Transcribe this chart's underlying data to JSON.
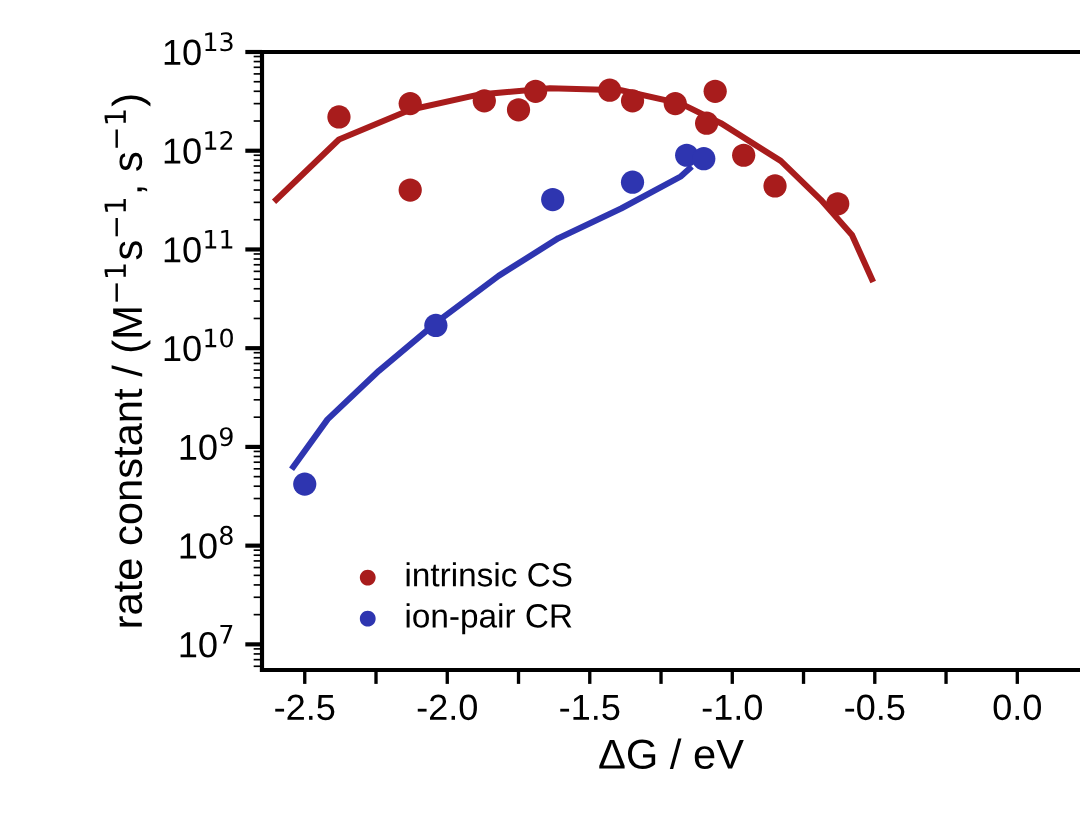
{
  "chart_data": {
    "type": "scatter",
    "xlabel": "ΔG / eV",
    "ylabel": "rate constant / (M$^{−1}$s$^{−1}$, s$^{−1}$)",
    "log": "y",
    "xlim": [
      -2.65,
      0.22
    ],
    "ylim": [
      5500000.0,
      10000000000000.0
    ],
    "xticks": [
      {
        "value": -2.5,
        "label": "-2.5"
      },
      {
        "value": -2.25,
        "label": null
      },
      {
        "value": -2.0,
        "label": "-2.0"
      },
      {
        "value": -1.75,
        "label": null
      },
      {
        "value": -1.5,
        "label": "-1.5"
      },
      {
        "value": -1.25,
        "label": null
      },
      {
        "value": -1.0,
        "label": "-1.0"
      },
      {
        "value": -0.75,
        "label": null
      },
      {
        "value": -0.5,
        "label": "-0.5"
      },
      {
        "value": -0.25,
        "label": null
      },
      {
        "value": 0.0,
        "label": "0.0"
      }
    ],
    "yticks": [
      {
        "value": 10000000.0,
        "label": "10$^{7}$"
      },
      {
        "value": 100000000.0,
        "label": "10$^{8}$"
      },
      {
        "value": 1000000000.0,
        "label": "10$^{9}$"
      },
      {
        "value": 10000000000.0,
        "label": "10$^{10}$"
      },
      {
        "value": 100000000000.0,
        "label": "10$^{11}$"
      },
      {
        "value": 1000000000000.0,
        "label": "10$^{12}$"
      },
      {
        "value": 10000000000000.0,
        "label": "10$^{13}$"
      }
    ],
    "legend": "bottom left",
    "grid": false,
    "series": [
      {
        "name": "intrinsic CS",
        "marker": "circle",
        "color": "#a81c1c",
        "x": [
          -2.38,
          -2.13,
          -2.13,
          -1.87,
          -1.75,
          -1.69,
          -1.43,
          -1.35,
          -1.2,
          -1.09,
          -1.06,
          -0.96,
          -0.85,
          -0.63
        ],
        "values": [
          2200000000000.0,
          3000000000000.0,
          400000000000.0,
          3200000000000.0,
          2600000000000.0,
          4000000000000.0,
          4100000000000.0,
          3200000000000.0,
          3000000000000.0,
          1900000000000.0,
          4000000000000.0,
          900000000000.0,
          440000000000.0,
          290000000000.0
        ]
      },
      {
        "name": "ion-pair CR",
        "marker": "circle",
        "color": "#2e35b0",
        "x": [
          -2.5,
          -2.04,
          -1.63,
          -1.35,
          -1.16,
          -1.1
        ],
        "values": [
          420000000.0,
          17000000000.0,
          320000000000.0,
          480000000000.0,
          900000000000.0,
          830000000000.0
        ]
      },
      {
        "type": "line",
        "marker": "none",
        "color": "#a81c1c",
        "x": [
          -2.6,
          -2.38,
          -2.13,
          -1.89,
          -1.64,
          -1.39,
          -1.18,
          -1.04,
          -0.83,
          -0.69,
          -0.58,
          -0.51
        ],
        "values": [
          320000000000.0,
          1300000000000.0,
          2600000000000.0,
          3700000000000.0,
          4300000000000.0,
          4100000000000.0,
          3000000000000.0,
          1900000000000.0,
          790000000000.0,
          320000000000.0,
          140000000000.0,
          50000000000.0
        ]
      },
      {
        "type": "line",
        "marker": "none",
        "color": "#2e35b0",
        "x": [
          -2.54,
          -2.42,
          -2.24,
          -2.03,
          -1.82,
          -1.61,
          -1.39,
          -1.18,
          -1.15
        ],
        "values": [
          630000000.0,
          1900000000.0,
          5900000000.0,
          19000000000.0,
          54000000000.0,
          130000000000.0,
          260000000000.0,
          550000000000.0,
          660000000000.0
        ]
      }
    ]
  }
}
